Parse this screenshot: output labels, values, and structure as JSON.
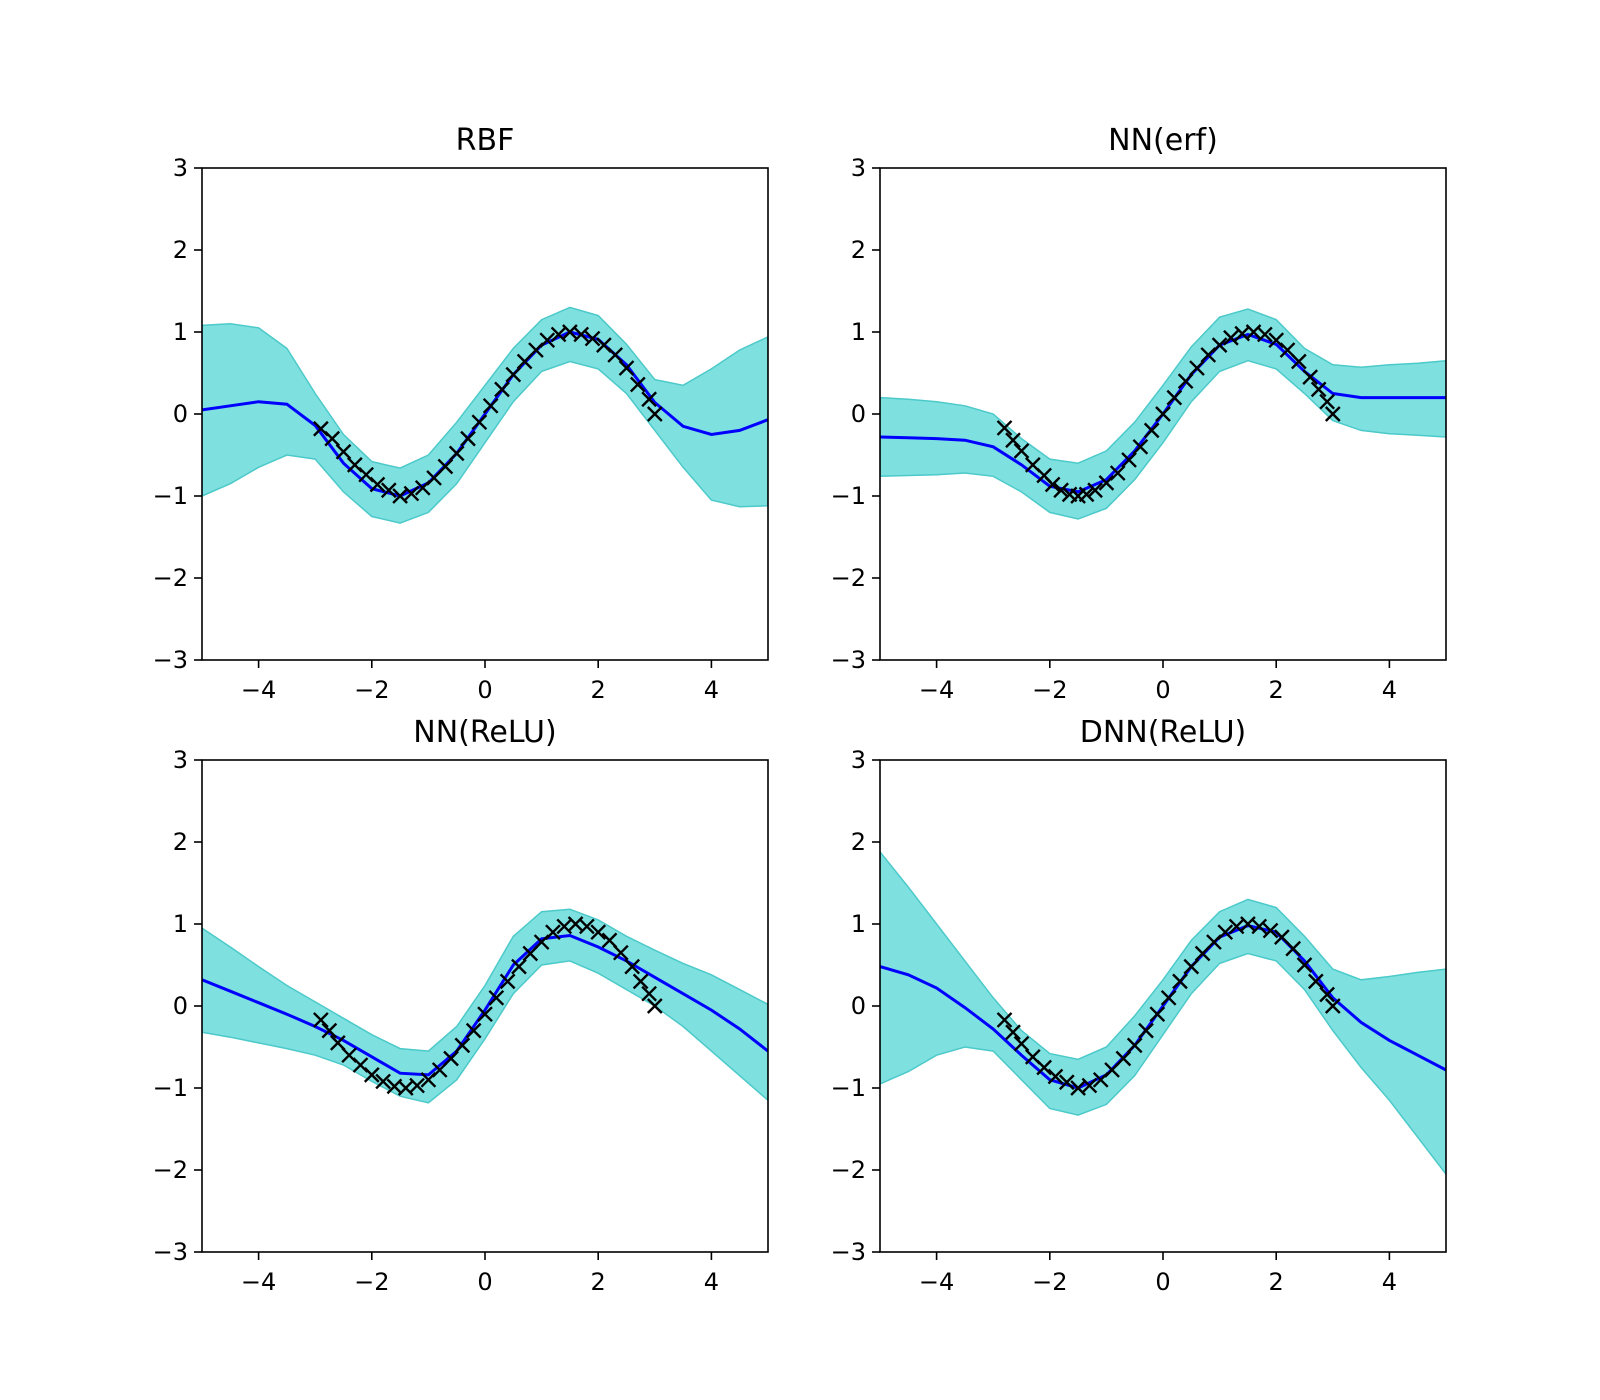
{
  "colors": {
    "band_fill": "#7fe0e0",
    "band_edge": "#4cc9c9",
    "mean_line": "#0000ff",
    "markers": "#000000",
    "axes": "#000000"
  },
  "chart_data": [
    {
      "type": "line",
      "title": "RBF",
      "xlim": [
        -5,
        5
      ],
      "ylim": [
        -3,
        3
      ],
      "xticks": [
        -4,
        -2,
        0,
        2,
        4
      ],
      "yticks": [
        -3,
        -2,
        -1,
        0,
        1,
        2,
        3
      ],
      "xtick_labels": [
        "−4",
        "−2",
        "0",
        "2",
        "4"
      ],
      "ytick_labels": [
        "−3",
        "−2",
        "−1",
        "0",
        "1",
        "2",
        "3"
      ],
      "grid": false,
      "mean": {
        "x": [
          -5,
          -4.5,
          -4,
          -3.5,
          -3,
          -2.5,
          -2,
          -1.5,
          -1,
          -0.5,
          0,
          0.5,
          1,
          1.5,
          2,
          2.5,
          3,
          3.5,
          4,
          4.5,
          5
        ],
        "y": [
          0.05,
          0.1,
          0.15,
          0.12,
          -0.14,
          -0.6,
          -0.91,
          -1.0,
          -0.84,
          -0.48,
          0.0,
          0.48,
          0.84,
          1.0,
          0.91,
          0.6,
          0.14,
          -0.15,
          -0.25,
          -0.2,
          -0.07
        ]
      },
      "upper": [
        1.08,
        1.1,
        1.05,
        0.8,
        0.25,
        -0.25,
        -0.58,
        -0.66,
        -0.5,
        -0.1,
        0.35,
        0.8,
        1.15,
        1.3,
        1.2,
        0.85,
        0.42,
        0.35,
        0.55,
        0.78,
        0.94
      ],
      "lower": [
        -1.0,
        -0.85,
        -0.65,
        -0.5,
        -0.55,
        -0.95,
        -1.25,
        -1.33,
        -1.2,
        -0.85,
        -0.35,
        0.15,
        0.52,
        0.64,
        0.55,
        0.25,
        -0.2,
        -0.65,
        -1.05,
        -1.13,
        -1.12
      ],
      "observations": {
        "x": [
          -2.9,
          -2.7,
          -2.5,
          -2.3,
          -2.1,
          -1.9,
          -1.7,
          -1.5,
          -1.3,
          -1.1,
          -0.9,
          -0.7,
          -0.5,
          -0.3,
          -0.1,
          0.1,
          0.3,
          0.5,
          0.7,
          0.9,
          1.1,
          1.3,
          1.5,
          1.7,
          1.9,
          2.1,
          2.3,
          2.5,
          2.7,
          2.9,
          3.0
        ],
        "y": [
          -0.18,
          -0.3,
          -0.46,
          -0.62,
          -0.74,
          -0.86,
          -0.93,
          -1.0,
          -0.97,
          -0.9,
          -0.78,
          -0.64,
          -0.48,
          -0.3,
          -0.1,
          0.1,
          0.3,
          0.48,
          0.64,
          0.78,
          0.9,
          0.97,
          1.0,
          0.97,
          0.92,
          0.84,
          0.72,
          0.56,
          0.36,
          0.18,
          0.0
        ]
      }
    },
    {
      "type": "line",
      "title": "NN(erf)",
      "xlim": [
        -5,
        5
      ],
      "ylim": [
        -3,
        3
      ],
      "xticks": [
        -4,
        -2,
        0,
        2,
        4
      ],
      "yticks": [
        -3,
        -2,
        -1,
        0,
        1,
        2,
        3
      ],
      "xtick_labels": [
        "−4",
        "−2",
        "0",
        "2",
        "4"
      ],
      "ytick_labels": [
        "−3",
        "−2",
        "−1",
        "0",
        "1",
        "2",
        "3"
      ],
      "grid": false,
      "mean": {
        "x": [
          -5,
          -4.5,
          -4,
          -3.5,
          -3,
          -2.5,
          -2,
          -1.5,
          -1,
          -0.5,
          0,
          0.5,
          1,
          1.5,
          2,
          2.5,
          3,
          3.5,
          4,
          4.5,
          5
        ],
        "y": [
          -0.28,
          -0.29,
          -0.3,
          -0.32,
          -0.4,
          -0.62,
          -0.88,
          -0.95,
          -0.8,
          -0.45,
          0.0,
          0.48,
          0.84,
          0.97,
          0.85,
          0.52,
          0.25,
          0.2,
          0.2,
          0.2,
          0.2
        ]
      },
      "upper": [
        0.2,
        0.18,
        0.15,
        0.1,
        0.0,
        -0.3,
        -0.55,
        -0.6,
        -0.45,
        -0.1,
        0.35,
        0.82,
        1.18,
        1.28,
        1.15,
        0.8,
        0.6,
        0.57,
        0.6,
        0.62,
        0.65
      ],
      "lower": [
        -0.76,
        -0.75,
        -0.74,
        -0.72,
        -0.76,
        -0.95,
        -1.2,
        -1.28,
        -1.15,
        -0.8,
        -0.35,
        0.15,
        0.52,
        0.65,
        0.55,
        0.25,
        -0.08,
        -0.2,
        -0.24,
        -0.26,
        -0.28
      ],
      "observations": {
        "x": [
          -2.8,
          -2.65,
          -2.5,
          -2.3,
          -2.1,
          -1.95,
          -1.8,
          -1.65,
          -1.5,
          -1.35,
          -1.2,
          -1.0,
          -0.8,
          -0.6,
          -0.4,
          -0.2,
          0.0,
          0.2,
          0.4,
          0.6,
          0.8,
          1.0,
          1.2,
          1.4,
          1.6,
          1.8,
          2.0,
          2.2,
          2.4,
          2.6,
          2.75,
          2.9,
          3.0
        ],
        "y": [
          -0.17,
          -0.32,
          -0.45,
          -0.62,
          -0.75,
          -0.86,
          -0.93,
          -0.98,
          -1.0,
          -0.98,
          -0.93,
          -0.84,
          -0.72,
          -0.56,
          -0.4,
          -0.2,
          0.0,
          0.2,
          0.4,
          0.56,
          0.72,
          0.84,
          0.93,
          0.98,
          1.0,
          0.97,
          0.9,
          0.78,
          0.64,
          0.45,
          0.3,
          0.15,
          0.0
        ]
      }
    },
    {
      "type": "line",
      "title": "NN(ReLU)",
      "xlim": [
        -5,
        5
      ],
      "ylim": [
        -3,
        3
      ],
      "xticks": [
        -4,
        -2,
        0,
        2,
        4
      ],
      "yticks": [
        -3,
        -2,
        -1,
        0,
        1,
        2,
        3
      ],
      "xtick_labels": [
        "−4",
        "−2",
        "0",
        "2",
        "4"
      ],
      "ytick_labels": [
        "−3",
        "−2",
        "−1",
        "0",
        "1",
        "2",
        "3"
      ],
      "grid": false,
      "mean": {
        "x": [
          -5,
          -4.5,
          -4,
          -3.5,
          -3,
          -2.5,
          -2,
          -1.5,
          -1,
          -0.5,
          0,
          0.5,
          1,
          1.5,
          2,
          2.5,
          3,
          3.5,
          4,
          4.5,
          5
        ],
        "y": [
          0.32,
          0.18,
          0.04,
          -0.1,
          -0.25,
          -0.42,
          -0.62,
          -0.82,
          -0.84,
          -0.55,
          -0.05,
          0.5,
          0.82,
          0.86,
          0.72,
          0.55,
          0.35,
          0.15,
          -0.05,
          -0.28,
          -0.55
        ]
      },
      "upper": [
        0.95,
        0.72,
        0.48,
        0.25,
        0.05,
        -0.15,
        -0.35,
        -0.52,
        -0.55,
        -0.25,
        0.25,
        0.85,
        1.15,
        1.18,
        1.05,
        0.85,
        0.68,
        0.52,
        0.38,
        0.2,
        0.02
      ],
      "lower": [
        -0.32,
        -0.38,
        -0.45,
        -0.52,
        -0.6,
        -0.72,
        -0.92,
        -1.1,
        -1.18,
        -0.9,
        -0.4,
        0.15,
        0.5,
        0.55,
        0.4,
        0.2,
        0.0,
        -0.25,
        -0.55,
        -0.85,
        -1.15
      ],
      "observations": {
        "x": [
          -2.9,
          -2.75,
          -2.6,
          -2.4,
          -2.2,
          -2.0,
          -1.8,
          -1.6,
          -1.4,
          -1.2,
          -1.0,
          -0.8,
          -0.6,
          -0.4,
          -0.2,
          0.0,
          0.2,
          0.4,
          0.6,
          0.8,
          1.0,
          1.2,
          1.4,
          1.6,
          1.8,
          2.0,
          2.2,
          2.4,
          2.6,
          2.75,
          2.9,
          3.0
        ],
        "y": [
          -0.17,
          -0.3,
          -0.45,
          -0.6,
          -0.72,
          -0.84,
          -0.92,
          -0.98,
          -1.0,
          -0.97,
          -0.9,
          -0.78,
          -0.64,
          -0.48,
          -0.3,
          -0.1,
          0.1,
          0.3,
          0.48,
          0.64,
          0.78,
          0.9,
          0.97,
          1.0,
          0.97,
          0.9,
          0.8,
          0.65,
          0.48,
          0.3,
          0.15,
          0.0
        ]
      }
    },
    {
      "type": "line",
      "title": "DNN(ReLU)",
      "xlim": [
        -5,
        5
      ],
      "ylim": [
        -3,
        3
      ],
      "xticks": [
        -4,
        -2,
        0,
        2,
        4
      ],
      "yticks": [
        -3,
        -2,
        -1,
        0,
        1,
        2,
        3
      ],
      "xtick_labels": [
        "−4",
        "−2",
        "0",
        "2",
        "4"
      ],
      "ytick_labels": [
        "−3",
        "−2",
        "−1",
        "0",
        "1",
        "2",
        "3"
      ],
      "grid": false,
      "mean": {
        "x": [
          -5,
          -4.5,
          -4,
          -3.5,
          -3,
          -2.5,
          -2,
          -1.5,
          -1,
          -0.5,
          0,
          0.5,
          1,
          1.5,
          2,
          2.5,
          3,
          3.5,
          4,
          4.5,
          5
        ],
        "y": [
          0.48,
          0.38,
          0.22,
          -0.02,
          -0.28,
          -0.6,
          -0.9,
          -1.0,
          -0.84,
          -0.48,
          0.0,
          0.48,
          0.84,
          0.98,
          0.9,
          0.55,
          0.1,
          -0.2,
          -0.42,
          -0.6,
          -0.78
        ]
      },
      "upper": [
        1.88,
        1.45,
        1.0,
        0.55,
        0.1,
        -0.3,
        -0.58,
        -0.65,
        -0.5,
        -0.12,
        0.32,
        0.8,
        1.15,
        1.3,
        1.2,
        0.85,
        0.45,
        0.32,
        0.36,
        0.41,
        0.45
      ],
      "lower": [
        -0.95,
        -0.8,
        -0.6,
        -0.5,
        -0.55,
        -0.9,
        -1.25,
        -1.33,
        -1.2,
        -0.85,
        -0.35,
        0.15,
        0.52,
        0.64,
        0.55,
        0.2,
        -0.3,
        -0.75,
        -1.15,
        -1.6,
        -2.05
      ],
      "observations": {
        "x": [
          -2.8,
          -2.65,
          -2.5,
          -2.3,
          -2.1,
          -1.9,
          -1.7,
          -1.5,
          -1.3,
          -1.1,
          -0.9,
          -0.7,
          -0.5,
          -0.3,
          -0.1,
          0.1,
          0.3,
          0.5,
          0.7,
          0.9,
          1.1,
          1.3,
          1.5,
          1.7,
          1.9,
          2.1,
          2.3,
          2.5,
          2.7,
          2.9,
          3.0
        ],
        "y": [
          -0.17,
          -0.32,
          -0.46,
          -0.62,
          -0.75,
          -0.86,
          -0.93,
          -1.0,
          -0.97,
          -0.9,
          -0.78,
          -0.64,
          -0.48,
          -0.3,
          -0.1,
          0.1,
          0.3,
          0.48,
          0.64,
          0.78,
          0.9,
          0.97,
          1.0,
          0.97,
          0.92,
          0.84,
          0.7,
          0.5,
          0.3,
          0.14,
          0.0
        ]
      }
    }
  ]
}
